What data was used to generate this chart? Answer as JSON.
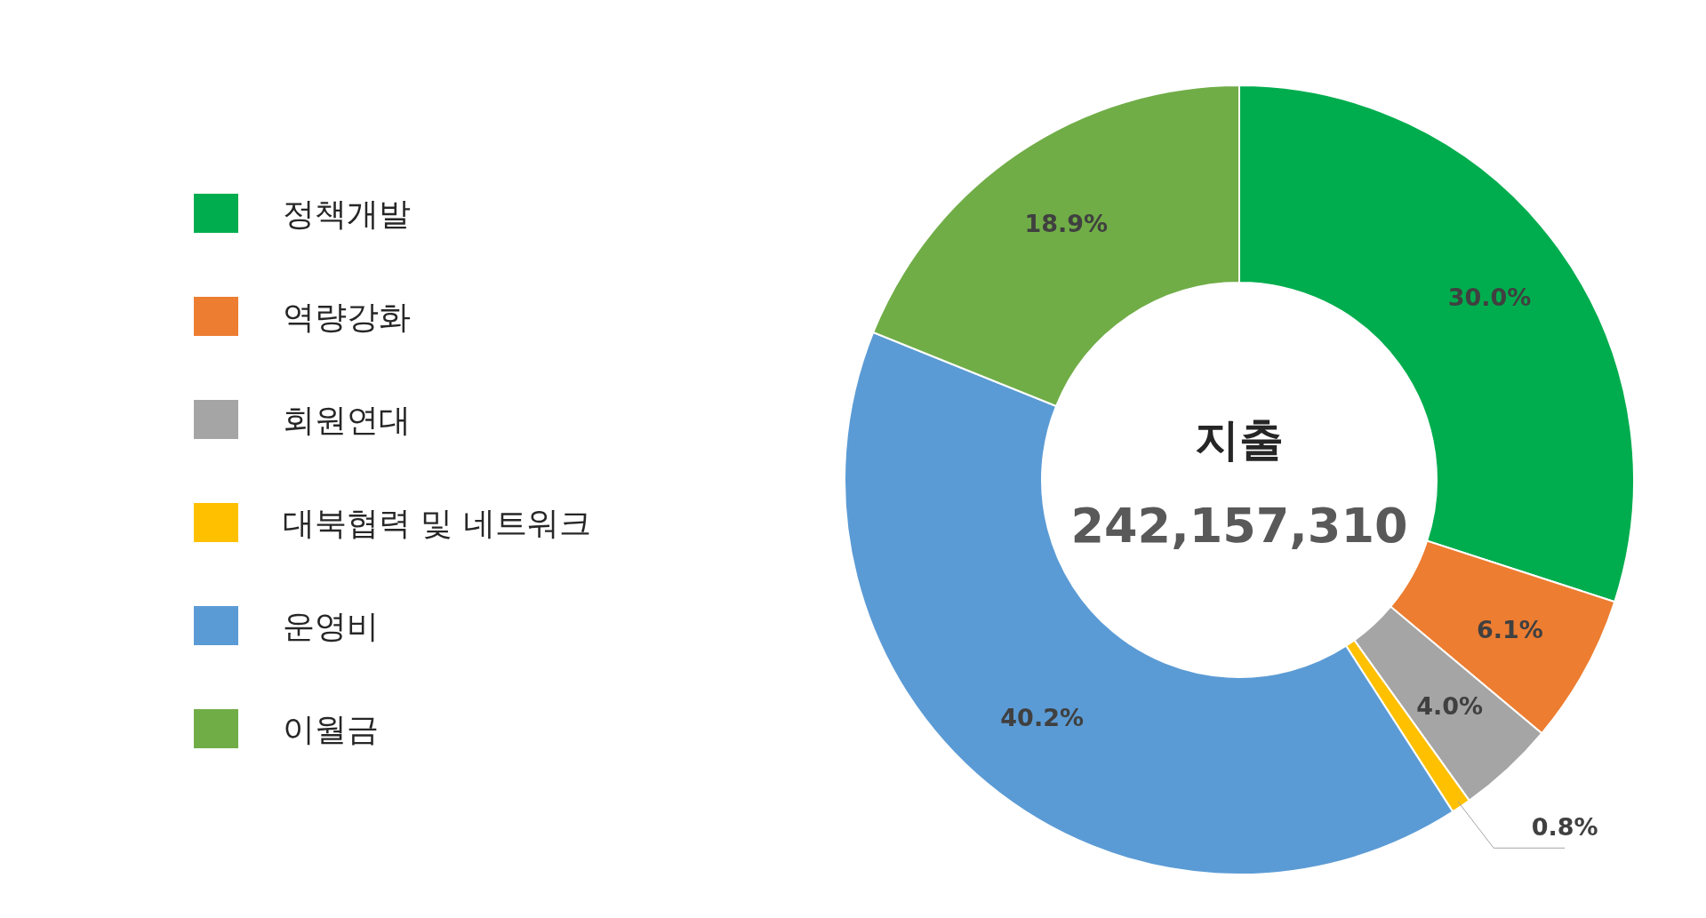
{
  "chart_data": {
    "type": "donut",
    "title": "지출",
    "annotations": [
      "242,157,310"
    ],
    "categories": [
      "정책개발",
      "역량강화",
      "회원연대",
      "대북협력 및 네트워크",
      "운영비",
      "이월금"
    ],
    "values": [
      30.0,
      6.1,
      4.0,
      0.8,
      40.2,
      18.9
    ],
    "colors": [
      "#00ad4e",
      "#ed7d31",
      "#a5a5a5",
      "#ffc000",
      "#5b9bd5",
      "#70ad47"
    ],
    "value_labels": [
      "30.0%",
      "6.1%",
      "4.0%",
      "0.8%",
      "40.2%",
      "18.9%"
    ],
    "legend": "left"
  }
}
